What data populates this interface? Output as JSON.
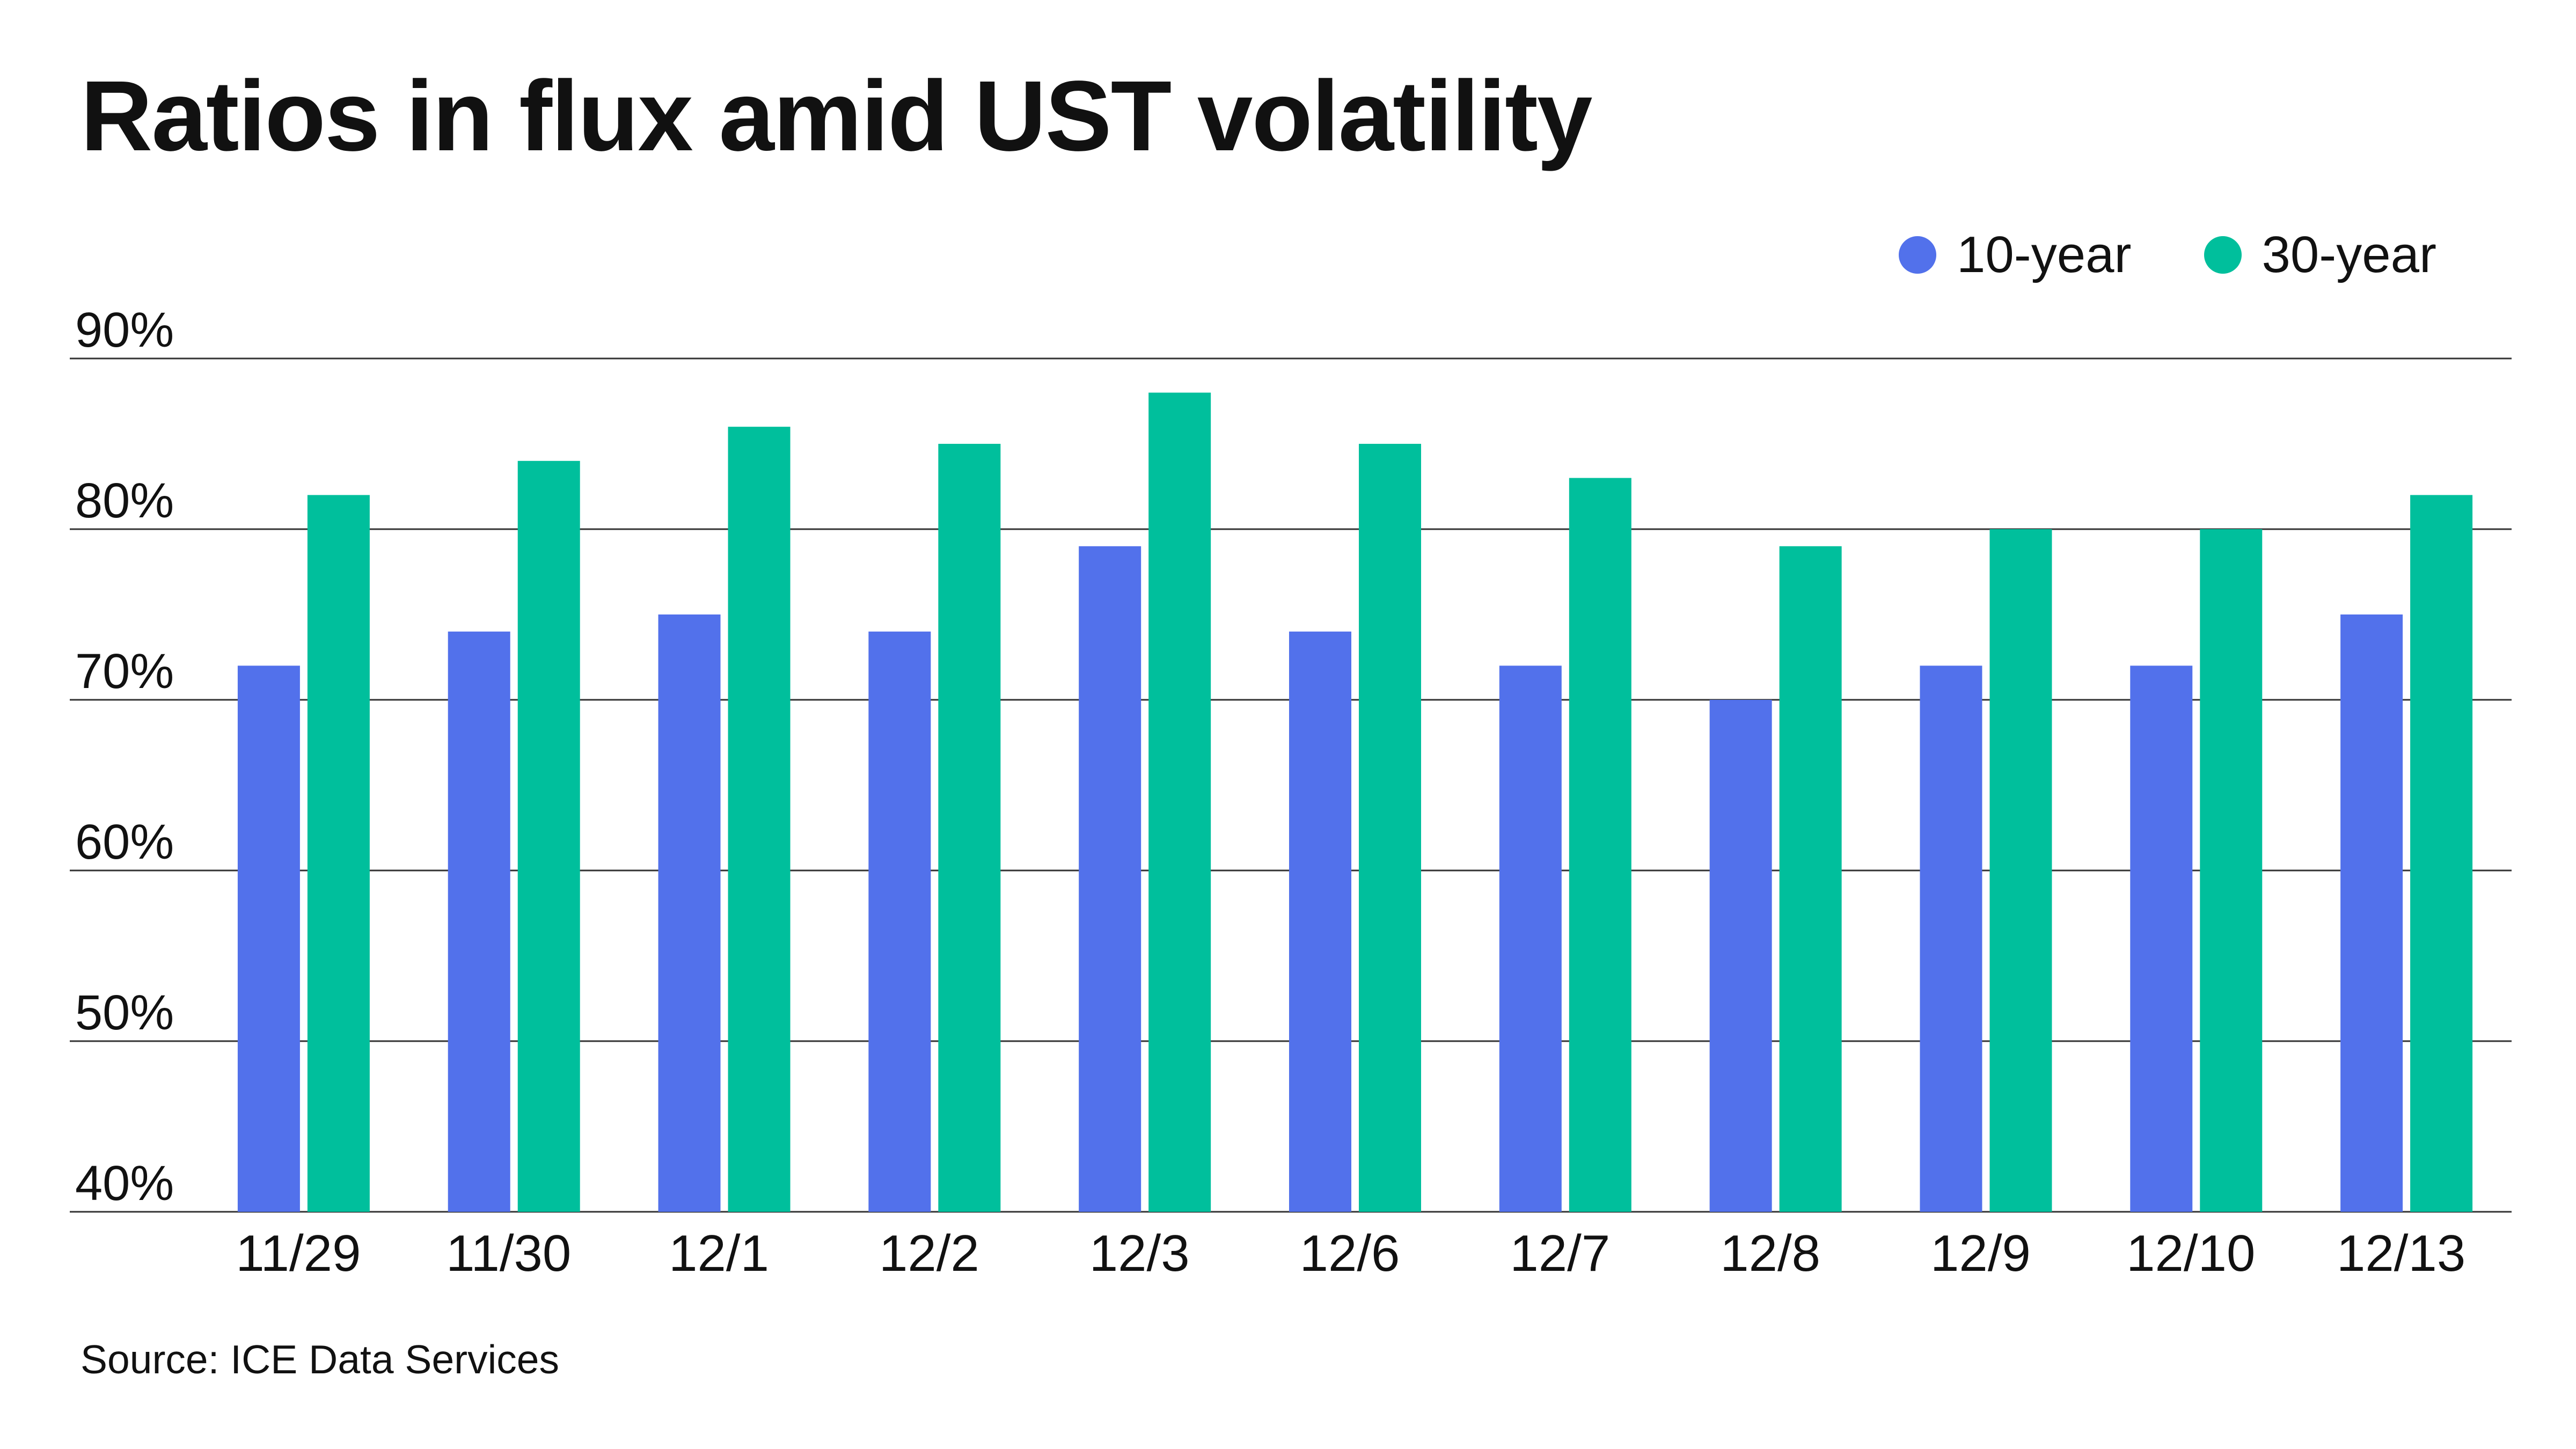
{
  "title": "Ratios in flux amid UST volatility",
  "source": "Source: ICE Data Services",
  "colors": {
    "ten_year": "#5271eb",
    "thirty_year": "#00bf9c",
    "grid": "#333333"
  },
  "chart_data": {
    "type": "bar",
    "title": "Ratios in flux amid UST volatility",
    "categories": [
      "11/29",
      "11/30",
      "12/1",
      "12/2",
      "12/3",
      "12/6",
      "12/7",
      "12/8",
      "12/9",
      "12/10",
      "12/13"
    ],
    "series": [
      {
        "name": "10-year",
        "values": [
          72,
          74,
          75,
          74,
          79,
          74,
          72,
          70,
          72,
          72,
          75
        ]
      },
      {
        "name": "30-year",
        "values": [
          82,
          84,
          86,
          85,
          88,
          85,
          83,
          79,
          80,
          80,
          82
        ]
      }
    ],
    "ylim": [
      40,
      90
    ],
    "yticks": [
      40,
      50,
      60,
      70,
      80,
      90
    ],
    "ytick_labels": [
      "40%",
      "50%",
      "60%",
      "70%",
      "80%",
      "90%"
    ],
    "grid": true,
    "legend_position": "top-right"
  }
}
